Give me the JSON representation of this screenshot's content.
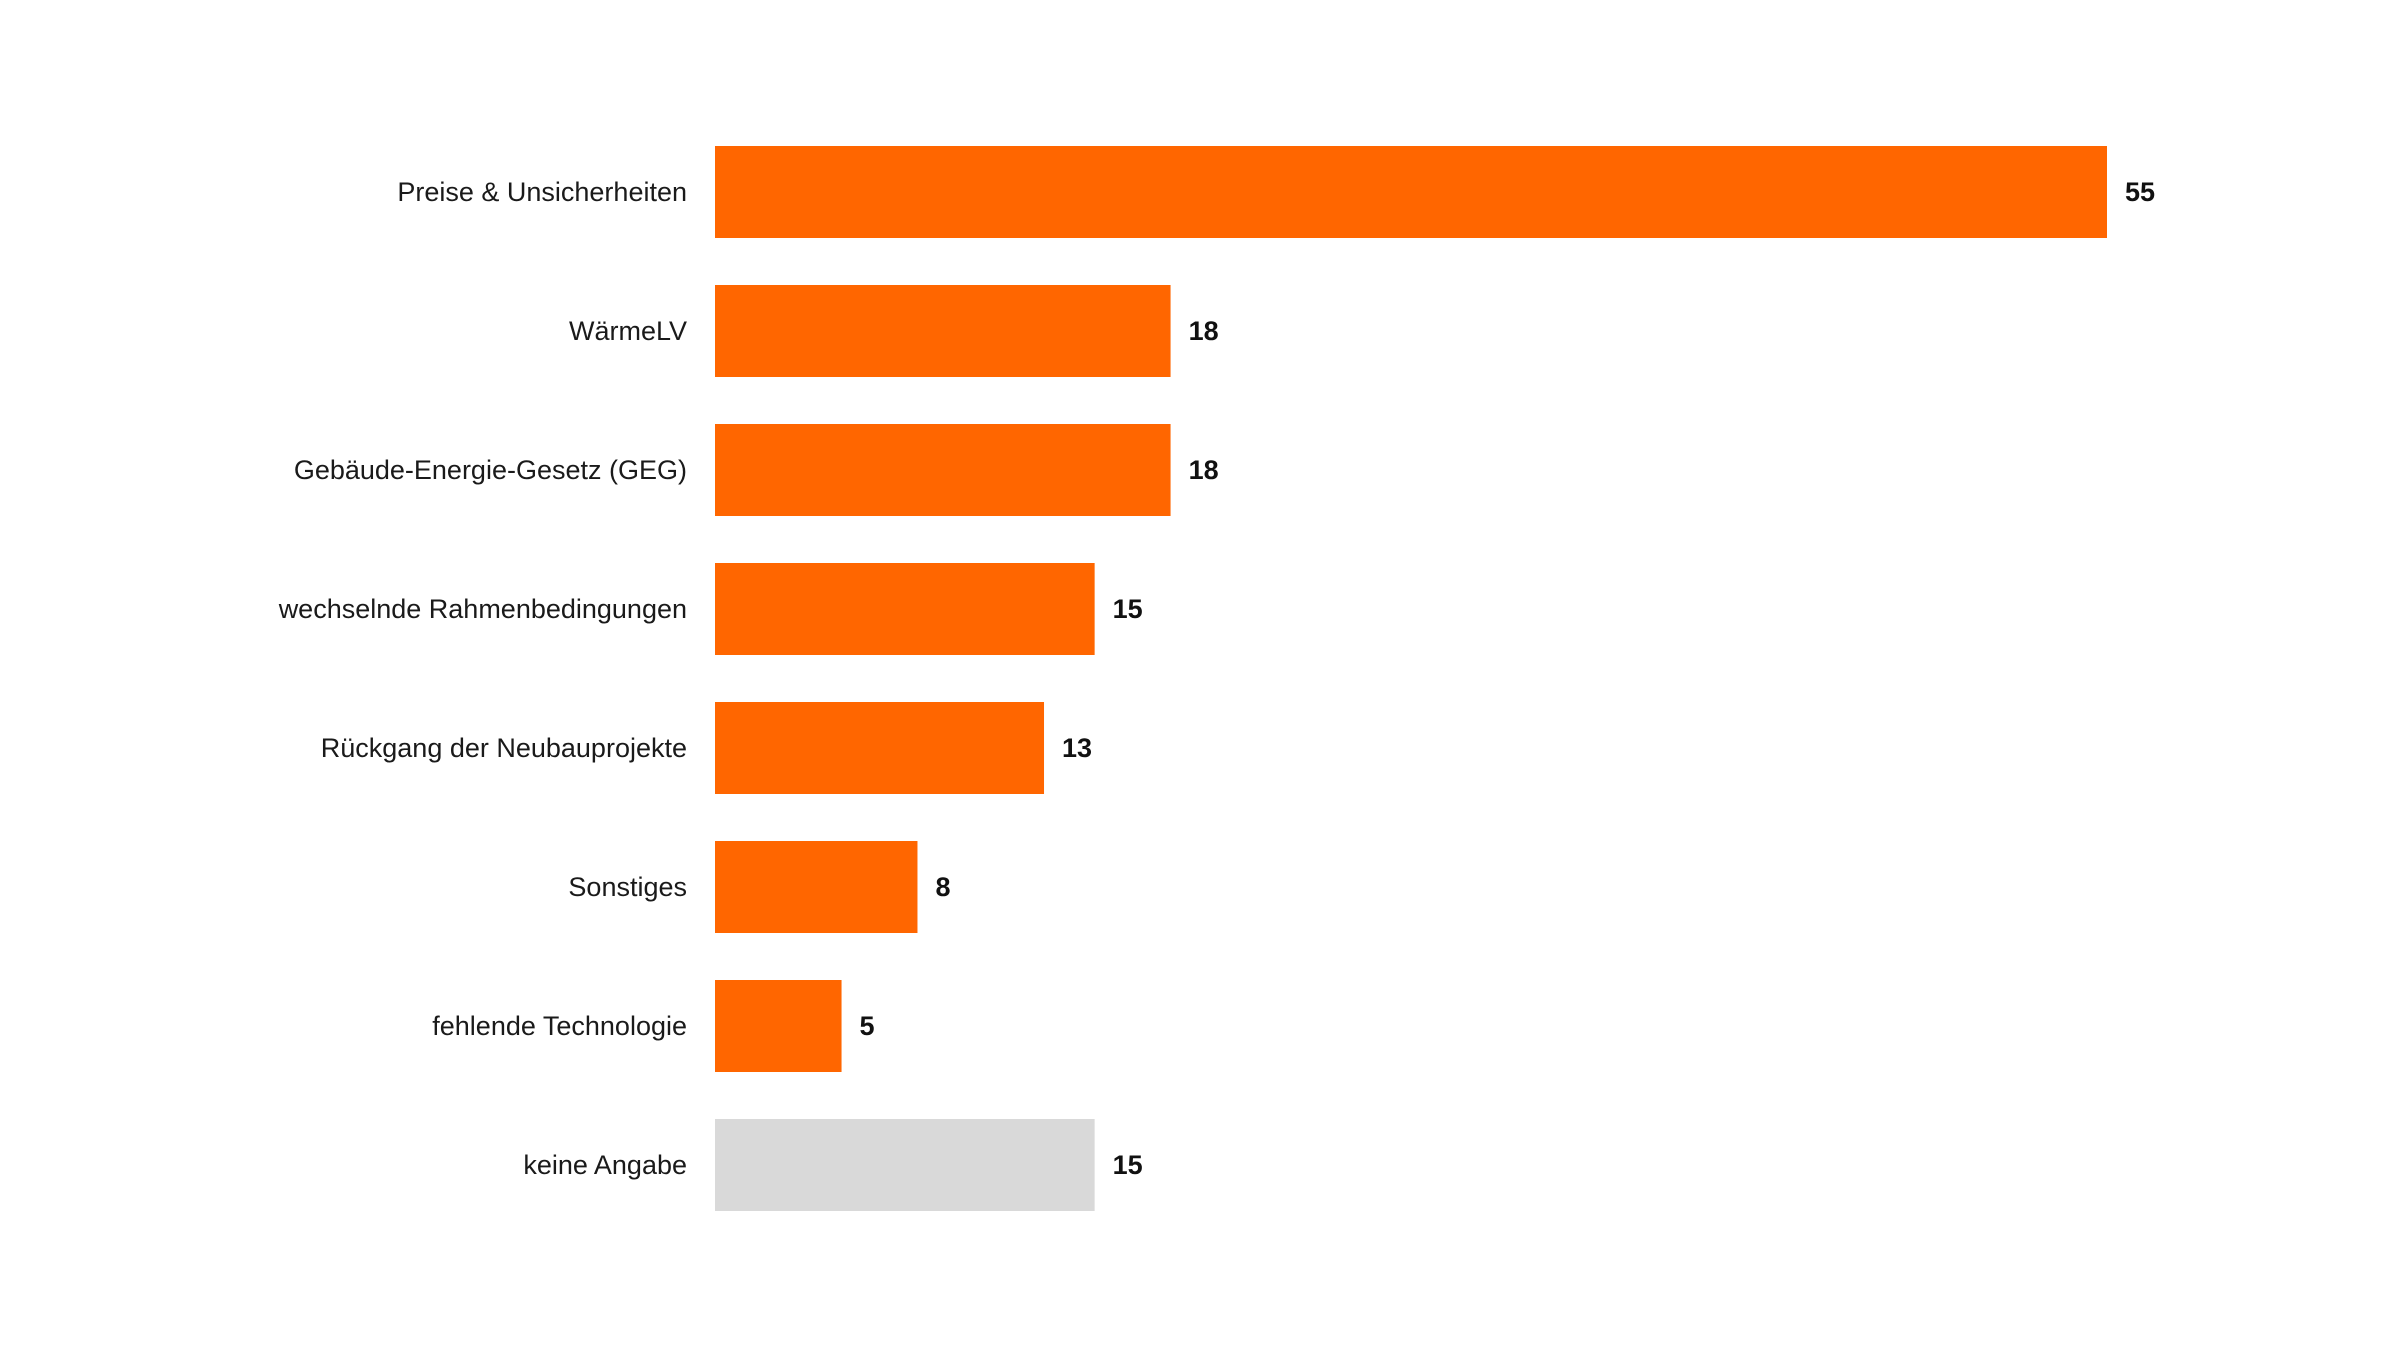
{
  "chart_data": {
    "type": "bar",
    "orientation": "horizontal",
    "categories": [
      "Preise & Unsicherheiten",
      "WärmeLV",
      "Gebäude-Energie-Gesetz (GEG)",
      "wechselnde Rahmenbedingungen",
      "Rückgang der Neubauprojekte",
      "Sonstiges",
      "fehlende Technologie",
      "keine Angabe"
    ],
    "values": [
      55,
      18,
      18,
      15,
      13,
      8,
      5,
      15
    ],
    "colors": [
      "#FF6600",
      "#FF6600",
      "#FF6600",
      "#FF6600",
      "#FF6600",
      "#FF6600",
      "#FF6600",
      "#D9D9D9"
    ],
    "data_labels": [
      "55",
      "18",
      "18",
      "15",
      "13",
      "8",
      "5",
      "15"
    ],
    "title": "",
    "xlabel": "",
    "ylabel": "",
    "xlim": [
      0,
      55
    ],
    "grid": false,
    "legend": "none"
  }
}
